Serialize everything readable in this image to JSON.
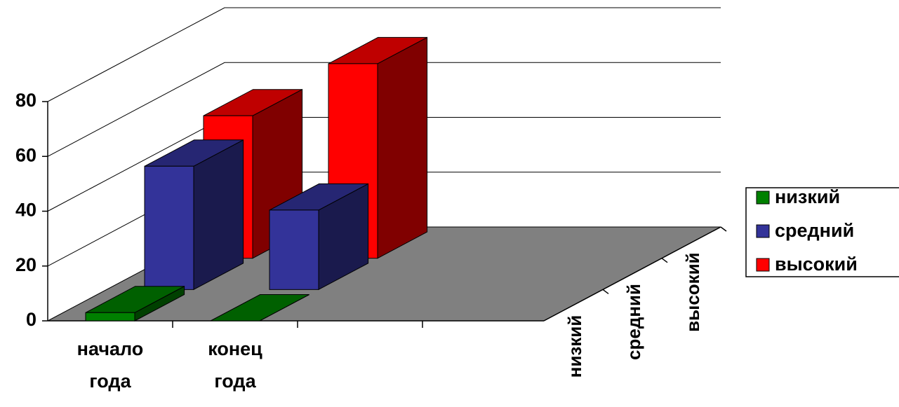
{
  "chart_data": {
    "type": "bar3d",
    "categories": [
      "начало года",
      "конец года"
    ],
    "series": [
      {
        "name": "низкий",
        "color": "#008000",
        "values": [
          3,
          0
        ]
      },
      {
        "name": "средний",
        "color": "#333399",
        "values": [
          45,
          29
        ]
      },
      {
        "name": "высокий",
        "color": "#ff0000",
        "values": [
          52,
          71
        ]
      }
    ],
    "ylim": [
      0,
      80
    ],
    "yticks": [
      0,
      20,
      40,
      60,
      80
    ],
    "grid": true,
    "legend": "right"
  }
}
